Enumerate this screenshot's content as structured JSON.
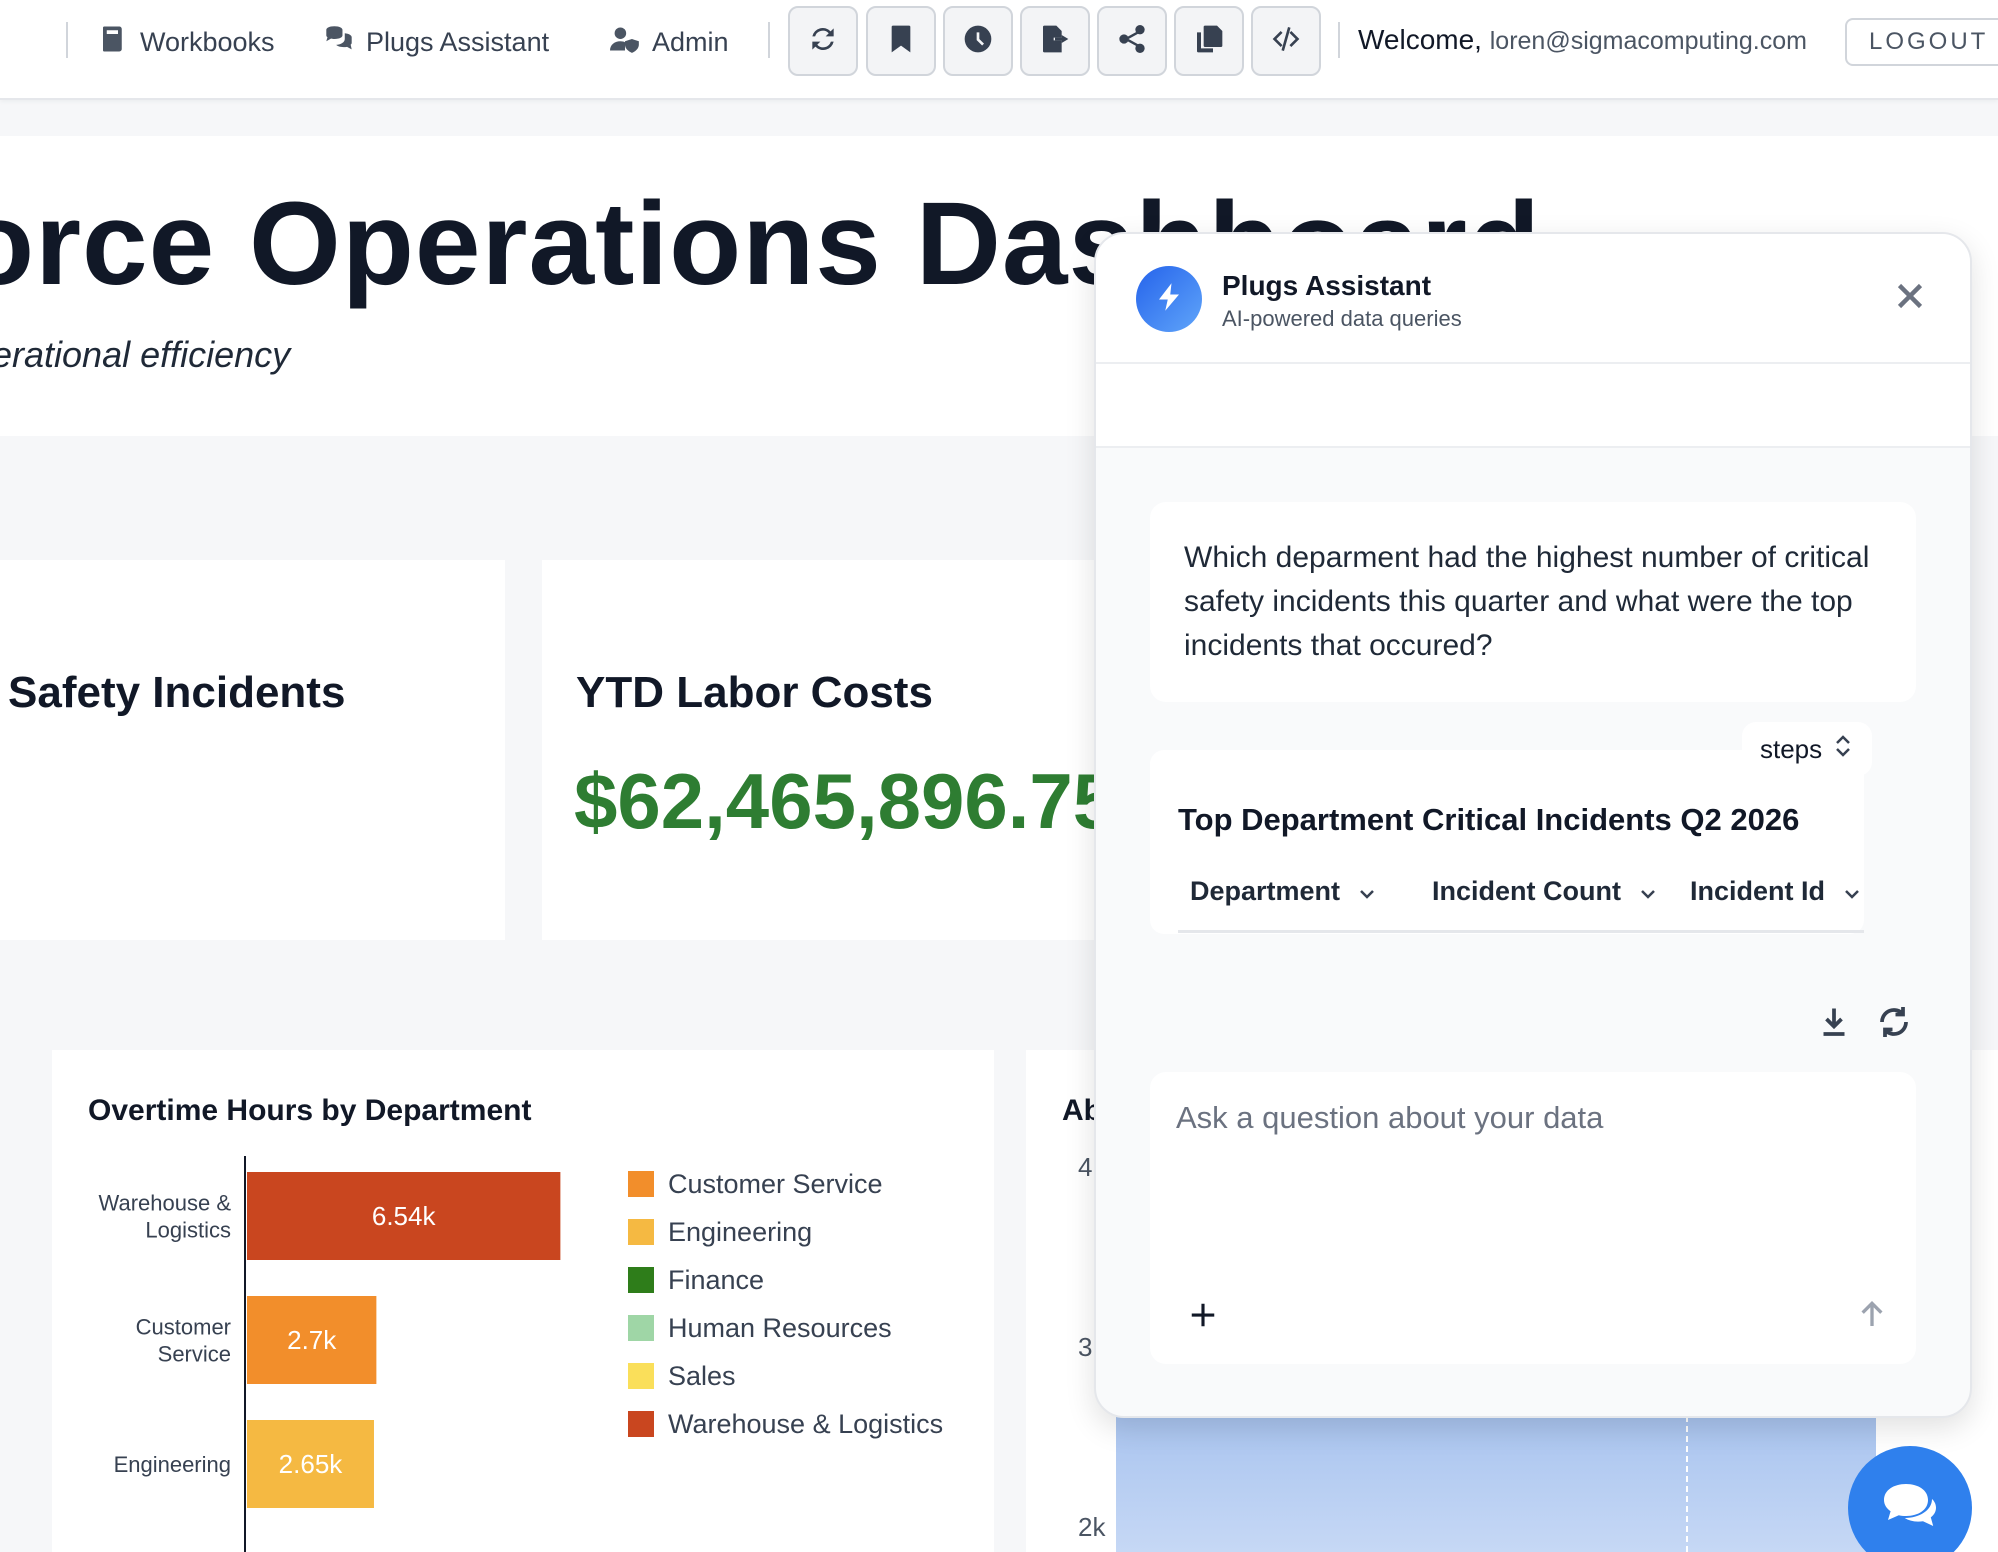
{
  "nav": {
    "workbooks": "Workbooks",
    "plugs_assistant": "Plugs Assistant",
    "admin": "Admin",
    "welcome": "Welcome,",
    "email": "loren@sigmacomputing.com",
    "logout": "LOGOUT"
  },
  "page": {
    "title": "orce Operations Dashboard",
    "subtitle": "erational efficiency"
  },
  "kpis": [
    {
      "title": "Safety Incidents"
    },
    {
      "title": "YTD Labor Costs",
      "value": "$62,465,896.75"
    }
  ],
  "overtime_chart": {
    "title": "Overtime Hours by Department",
    "legend": [
      {
        "name": "Customer Service",
        "color": "#f28e2b"
      },
      {
        "name": "Engineering",
        "color": "#f5b942"
      },
      {
        "name": "Finance",
        "color": "#2e7d1a"
      },
      {
        "name": "Human Resources",
        "color": "#9fd6a6"
      },
      {
        "name": "Sales",
        "color": "#fadf5a"
      },
      {
        "name": "Warehouse & Logistics",
        "color": "#c9461f"
      }
    ]
  },
  "chart_data": {
    "type": "bar",
    "orientation": "horizontal",
    "title": "Overtime Hours by Department",
    "categories": [
      "Warehouse & Logistics",
      "Customer Service",
      "Engineering"
    ],
    "category_lines": [
      [
        "Warehouse &",
        "Logistics"
      ],
      [
        "Customer",
        "Service"
      ],
      [
        "Engineering"
      ]
    ],
    "values": [
      6540,
      2700,
      2650
    ],
    "data_labels": [
      "6.54k",
      "2.7k",
      "2.65k"
    ],
    "colors": [
      "#c9461f",
      "#f28e2b",
      "#f5b942"
    ],
    "xlim": [
      0,
      7200
    ]
  },
  "right_chart": {
    "title_fragment": "Ab",
    "y_ticks": [
      "4",
      "3",
      "2k"
    ]
  },
  "assistant": {
    "name": "Plugs Assistant",
    "subtitle": "AI-powered data queries",
    "user_message": "Which deparment had the highest number of critical safety incidents this quarter and what were the top incidents that occured?",
    "steps_label": "steps",
    "result_title": "Top Department Critical Incidents Q2 2026",
    "columns": [
      "Department",
      "Incident Count",
      "Incident Id"
    ],
    "input_placeholder": "Ask a question about your data"
  },
  "colors": {
    "accent": "#2f80ed",
    "kpi_green": "#2e7d32"
  }
}
